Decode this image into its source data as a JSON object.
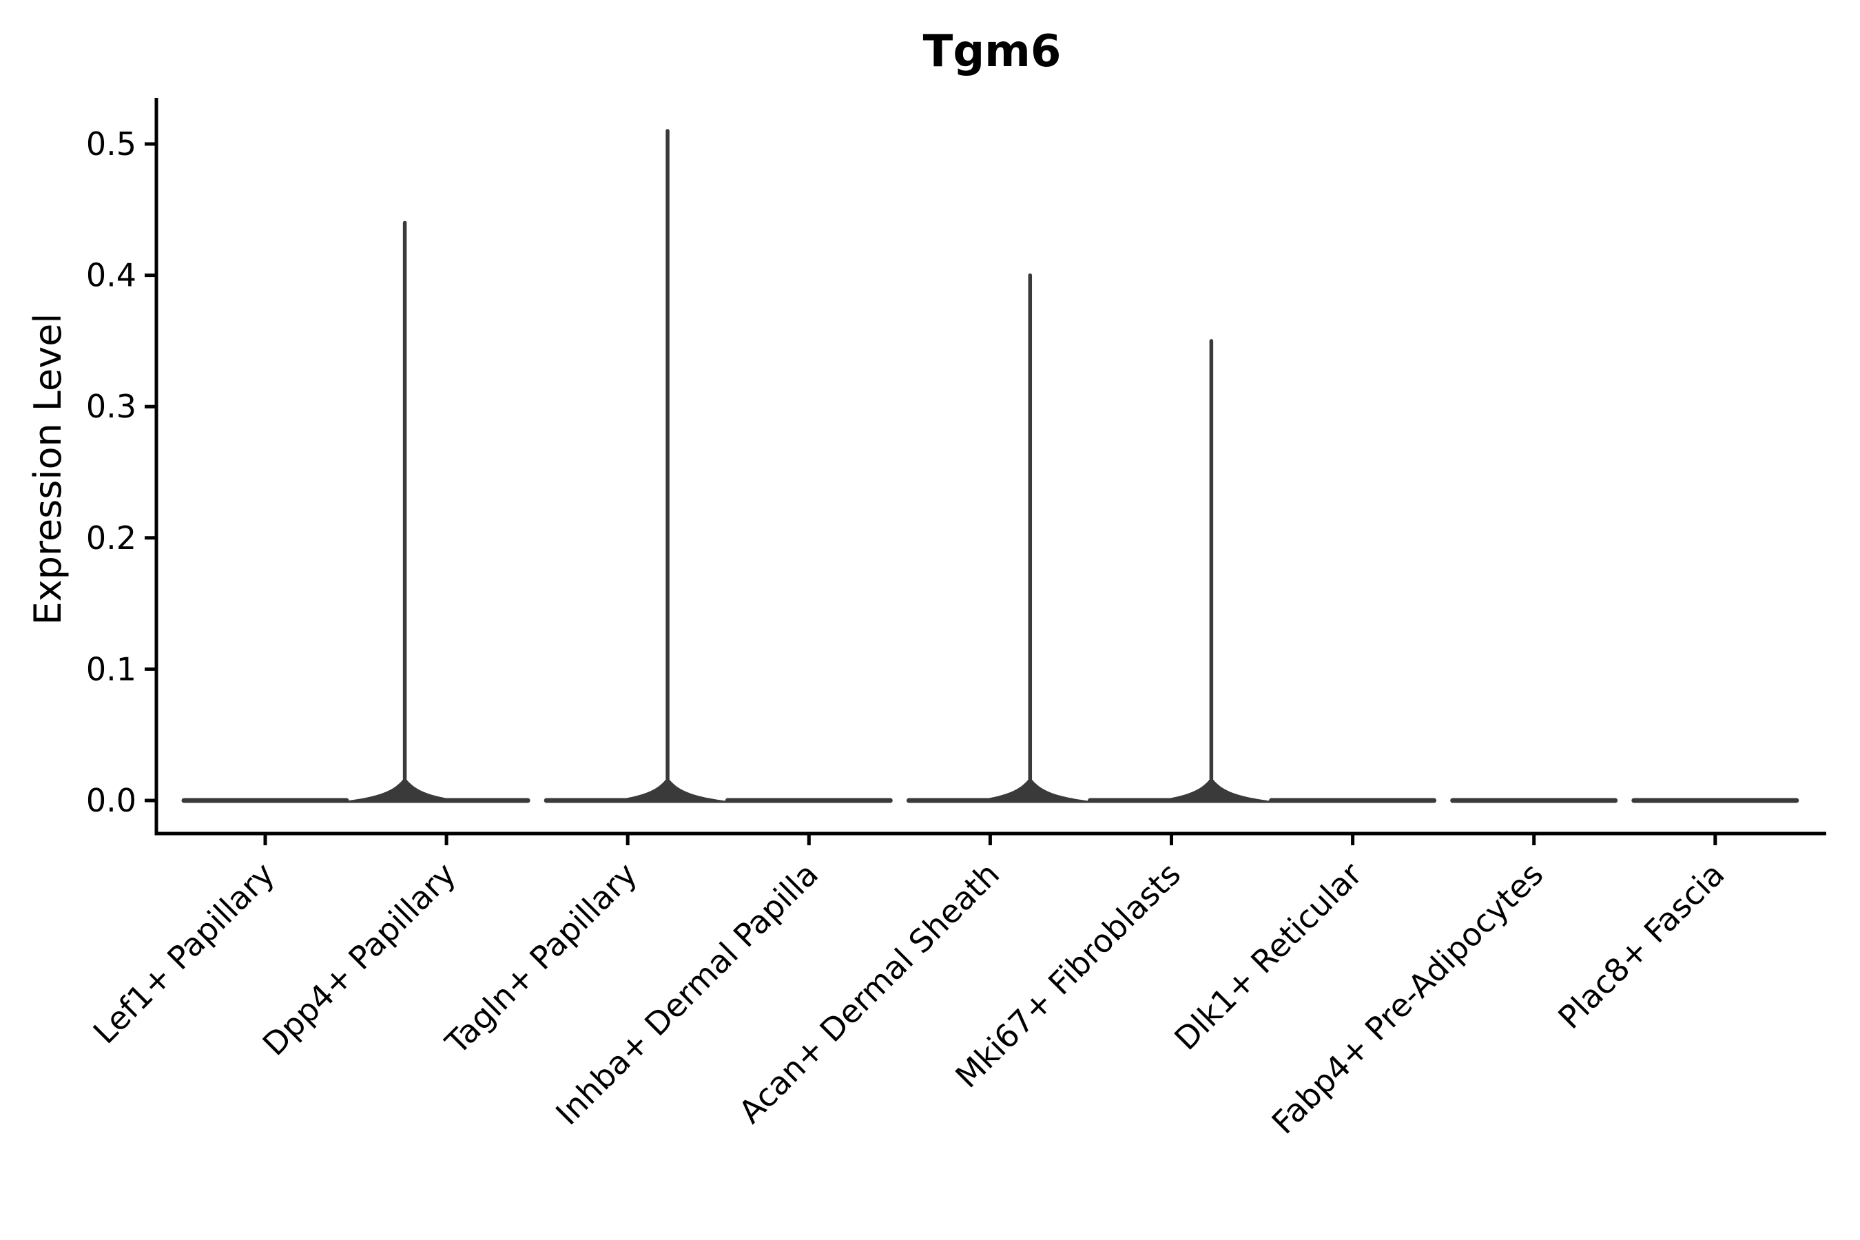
{
  "chart_data": {
    "type": "violin",
    "title": "Tgm6",
    "xlabel": "",
    "ylabel": "Expression Level",
    "ylim": [
      0,
      0.535
    ],
    "grid": false,
    "legend": "none",
    "yticks": [
      {
        "value": 0.0,
        "label": "0.0"
      },
      {
        "value": 0.1,
        "label": "0.1"
      },
      {
        "value": 0.2,
        "label": "0.2"
      },
      {
        "value": 0.3,
        "label": "0.3"
      },
      {
        "value": 0.4,
        "label": "0.4"
      },
      {
        "value": 0.5,
        "label": "0.5"
      }
    ],
    "categories": [
      "Lef1+ Papillary",
      "Dpp4+ Papillary",
      "Tagln+ Papillary",
      "Inhba+ Dermal Papilla",
      "Acan+ Dermal Sheath",
      "Mki67+ Fibroblasts",
      "Dlk1+ Reticular",
      "Fabp4+ Pre-Adipocytes",
      "Plac8+ Fascia"
    ],
    "violins": [
      {
        "category": "Lef1+ Papillary",
        "max_expression": 0.0,
        "spike_offset": 0
      },
      {
        "category": "Dpp4+ Papillary",
        "max_expression": 0.44,
        "spike_offset": -0.23
      },
      {
        "category": "Tagln+ Papillary",
        "max_expression": 0.51,
        "spike_offset": 0.22
      },
      {
        "category": "Inhba+ Dermal Papilla",
        "max_expression": 0.0,
        "spike_offset": 0
      },
      {
        "category": "Acan+ Dermal Sheath",
        "max_expression": 0.4,
        "spike_offset": 0.22
      },
      {
        "category": "Mki67+ Fibroblasts",
        "max_expression": 0.35,
        "spike_offset": 0.22
      },
      {
        "category": "Dlk1+ Reticular",
        "max_expression": 0.0,
        "spike_offset": 0
      },
      {
        "category": "Fabp4+ Pre-Adipocytes",
        "max_expression": 0.0,
        "spike_offset": 0
      },
      {
        "category": "Plac8+ Fascia",
        "max_expression": 0.0,
        "spike_offset": 0
      }
    ],
    "colors": {
      "violin": "#3a3a3a",
      "axis": "#000000",
      "text": "#000000",
      "background": "#ffffff"
    }
  }
}
